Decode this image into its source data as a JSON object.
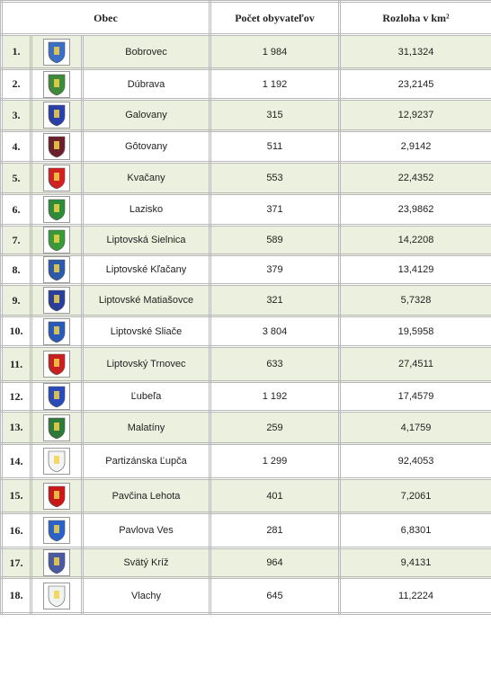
{
  "table": {
    "header": [
      "Obec",
      "Počet obyvateľov",
      "Rozloha v km²"
    ],
    "rows": [
      [
        "1.",
        "Bobrovec",
        "1 984",
        "31,1324"
      ],
      [
        "2.",
        "Dúbrava",
        "1 192",
        "23,2145"
      ],
      [
        "3.",
        "Galovany",
        "315",
        "12,9237"
      ],
      [
        "4.",
        "Gôtovany",
        "511",
        "2,9142"
      ],
      [
        "5.",
        "Kvačany",
        "553",
        "22,4352"
      ],
      [
        "6.",
        "Lazisko",
        "371",
        "23,9862"
      ],
      [
        "7.",
        "Liptovská Sielnica",
        "589",
        "14,2208"
      ],
      [
        "8.",
        "Liptovské Kľačany",
        "379",
        "13,4129"
      ],
      [
        "9.",
        "Liptovské Matiašovce",
        "321",
        "5,7328"
      ],
      [
        "10.",
        "Liptovské Sliače",
        "3 804",
        "19,5958"
      ],
      [
        "11.",
        "Liptovský Trnovec",
        "633",
        "27,4511"
      ],
      [
        "12.",
        "Ľubeľa",
        "1 192",
        "17,4579"
      ],
      [
        "13.",
        "Malatíny",
        "259",
        "4,1759"
      ],
      [
        "14.",
        "Partizánska Ľupča",
        "1 299",
        "92,4053"
      ],
      [
        "15.",
        "Pavčina Lehota",
        "401",
        "7,2061"
      ],
      [
        "16.",
        "Pavlova Ves",
        "281",
        "6,8301"
      ],
      [
        "17.",
        "Svätý Kríž",
        "964",
        "9,4131"
      ],
      [
        "18.",
        "Vlachy",
        "645",
        "11,2224"
      ]
    ]
  }
}
